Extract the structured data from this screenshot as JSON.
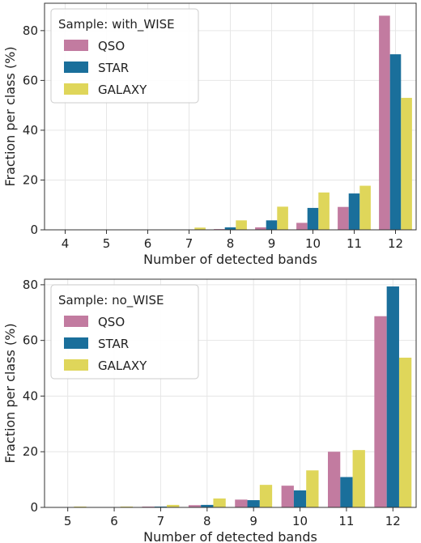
{
  "chart_data": [
    {
      "type": "bar",
      "xlabel": "Number of detected bands",
      "ylabel": "Fraction per class (%)",
      "ylim": [
        0,
        91
      ],
      "yticks": [
        0,
        20,
        40,
        60,
        80
      ],
      "categories": [
        "4",
        "5",
        "6",
        "7",
        "8",
        "9",
        "10",
        "11",
        "12"
      ],
      "grid": true,
      "legend": {
        "title": "Sample: with_WISE",
        "position": "top-left"
      },
      "series": [
        {
          "name": "QSO",
          "color": "#c27ba0",
          "values": [
            0,
            0,
            0,
            0,
            0.3,
            1.0,
            2.8,
            9.2,
            86.0
          ]
        },
        {
          "name": "STAR",
          "color": "#1a6f9b",
          "values": [
            0,
            0,
            0,
            0,
            1.0,
            3.8,
            8.8,
            14.6,
            70.5
          ]
        },
        {
          "name": "GALAXY",
          "color": "#dfd65a",
          "values": [
            0,
            0,
            0,
            0.9,
            3.8,
            9.3,
            15.0,
            17.7,
            53.0
          ]
        }
      ]
    },
    {
      "type": "bar",
      "xlabel": "Number of detected bands",
      "ylabel": "Fraction per class (%)",
      "ylim": [
        0,
        82
      ],
      "yticks": [
        0,
        20,
        40,
        60,
        80
      ],
      "categories": [
        "5",
        "6",
        "7",
        "8",
        "9",
        "10",
        "11",
        "12"
      ],
      "grid": true,
      "legend": {
        "title": "Sample: no_WISE",
        "position": "top-left"
      },
      "series": [
        {
          "name": "QSO",
          "color": "#c27ba0",
          "values": [
            0.1,
            0.1,
            0.3,
            0.8,
            2.8,
            7.8,
            20.0,
            68.7
          ]
        },
        {
          "name": "STAR",
          "color": "#1a6f9b",
          "values": [
            0.0,
            0.1,
            0.3,
            0.9,
            2.6,
            6.1,
            10.9,
            79.4
          ]
        },
        {
          "name": "GALAXY",
          "color": "#dfd65a",
          "values": [
            0.3,
            0.3,
            0.9,
            3.2,
            8.1,
            13.3,
            20.6,
            53.8
          ]
        }
      ]
    }
  ]
}
